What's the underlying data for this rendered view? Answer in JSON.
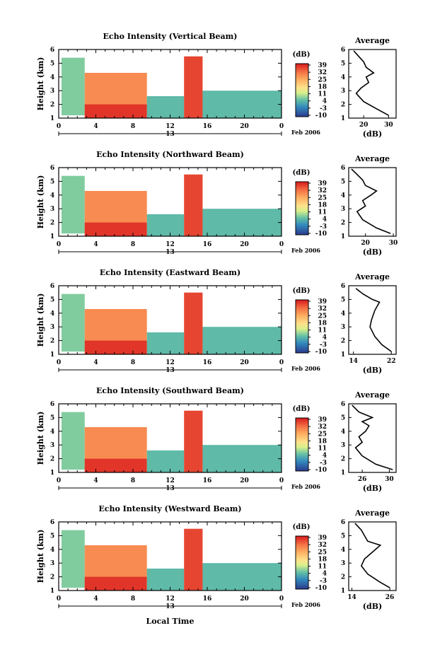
{
  "chart_data": [
    {
      "type": "heatmap",
      "title": "Echo Intensity (Vertical Beam)",
      "ylabel": "Height (km)",
      "xticks": [
        "0",
        "4",
        "8",
        "12",
        "16",
        "20",
        "0"
      ],
      "yticks": [
        "1",
        "2",
        "3",
        "4",
        "5",
        "6"
      ],
      "ylim": [
        1,
        6
      ],
      "xlim": [
        0,
        24
      ],
      "date_label": "Feb 2006",
      "day_label": "13",
      "colorbar_unit": "(dB)",
      "colorbar_ticks": [
        "39",
        "32",
        "25",
        "18",
        "11",
        "4",
        "-3",
        "-10"
      ],
      "cells": [
        {
          "x0": 0.3,
          "x1": 2.8,
          "y0": 1.2,
          "y1": 5.4,
          "level": 0.35
        },
        {
          "x0": 2.8,
          "x1": 9.5,
          "y0": 1.0,
          "y1": 4.3,
          "level": 0.78
        },
        {
          "x0": 2.8,
          "x1": 9.5,
          "y0": 1.0,
          "y1": 2.0,
          "level": 0.95
        },
        {
          "x0": 9.5,
          "x1": 13.5,
          "y0": 1.0,
          "y1": 2.6,
          "level": 0.3
        },
        {
          "x0": 13.5,
          "x1": 15.5,
          "y0": 1.0,
          "y1": 5.5,
          "level": 0.92
        },
        {
          "x0": 15.5,
          "x1": 24,
          "y0": 1.0,
          "y1": 3.0,
          "level": 0.3
        }
      ],
      "avg": {
        "title": "Average",
        "xlabel": "(dB)",
        "xticks": [
          "20",
          "30"
        ],
        "xlim": [
          14,
          33
        ],
        "profile": [
          [
            30,
            1.2
          ],
          [
            26,
            1.6
          ],
          [
            20,
            2.2
          ],
          [
            17,
            2.8
          ],
          [
            19,
            3.2
          ],
          [
            22,
            3.6
          ],
          [
            21,
            4.0
          ],
          [
            24,
            4.3
          ],
          [
            21,
            4.7
          ],
          [
            20,
            5.1
          ],
          [
            18,
            5.5
          ],
          [
            16,
            5.9
          ]
        ]
      }
    },
    {
      "type": "heatmap",
      "title": "Echo Intensity (Northward Beam)",
      "ylabel": "Height (km)",
      "xticks": [
        "0",
        "4",
        "8",
        "12",
        "16",
        "20",
        "0"
      ],
      "yticks": [
        "1",
        "2",
        "3",
        "4",
        "5",
        "6"
      ],
      "ylim": [
        1,
        6
      ],
      "xlim": [
        0,
        24
      ],
      "date_label": "Feb 2006",
      "day_label": "13",
      "colorbar_unit": "(dB)",
      "colorbar_ticks": [
        "39",
        "32",
        "25",
        "18",
        "11",
        "4",
        "-3",
        "-10"
      ],
      "cells": [
        {
          "x0": 0.3,
          "x1": 2.8,
          "y0": 1.2,
          "y1": 5.4,
          "level": 0.35
        },
        {
          "x0": 2.8,
          "x1": 9.5,
          "y0": 1.0,
          "y1": 4.3,
          "level": 0.78
        },
        {
          "x0": 2.8,
          "x1": 9.5,
          "y0": 1.0,
          "y1": 2.0,
          "level": 0.95
        },
        {
          "x0": 9.5,
          "x1": 13.5,
          "y0": 1.0,
          "y1": 2.6,
          "level": 0.3
        },
        {
          "x0": 13.5,
          "x1": 15.5,
          "y0": 1.0,
          "y1": 5.5,
          "level": 0.92
        },
        {
          "x0": 15.5,
          "x1": 24,
          "y0": 1.0,
          "y1": 3.0,
          "level": 0.3
        }
      ],
      "avg": {
        "title": "Average",
        "xlabel": "(dB)",
        "xticks": [
          "20",
          "30"
        ],
        "xlim": [
          14,
          31
        ],
        "profile": [
          [
            29,
            1.2
          ],
          [
            24,
            1.6
          ],
          [
            19,
            2.2
          ],
          [
            17,
            2.8
          ],
          [
            20,
            3.2
          ],
          [
            19,
            3.6
          ],
          [
            22,
            4.0
          ],
          [
            24,
            4.3
          ],
          [
            20,
            4.7
          ],
          [
            19,
            5.1
          ],
          [
            17,
            5.5
          ],
          [
            15,
            5.9
          ]
        ]
      }
    },
    {
      "type": "heatmap",
      "title": "Echo Intensity (Eastward Beam)",
      "ylabel": "Height (km)",
      "xticks": [
        "0",
        "4",
        "8",
        "12",
        "16",
        "20",
        "0"
      ],
      "yticks": [
        "1",
        "2",
        "3",
        "4",
        "5",
        "6"
      ],
      "ylim": [
        1,
        6
      ],
      "xlim": [
        0,
        24
      ],
      "date_label": "Feb 2006",
      "day_label": "13",
      "colorbar_unit": "(dB)",
      "colorbar_ticks": [
        "39",
        "32",
        "25",
        "18",
        "11",
        "4",
        "-3",
        "-10"
      ],
      "cells": [
        {
          "x0": 0.3,
          "x1": 2.8,
          "y0": 1.2,
          "y1": 5.4,
          "level": 0.35
        },
        {
          "x0": 2.8,
          "x1": 9.5,
          "y0": 1.0,
          "y1": 4.3,
          "level": 0.78
        },
        {
          "x0": 2.8,
          "x1": 9.5,
          "y0": 1.0,
          "y1": 2.0,
          "level": 0.95
        },
        {
          "x0": 9.5,
          "x1": 13.5,
          "y0": 1.0,
          "y1": 2.6,
          "level": 0.3
        },
        {
          "x0": 13.5,
          "x1": 15.5,
          "y0": 1.0,
          "y1": 5.5,
          "level": 0.92
        },
        {
          "x0": 15.5,
          "x1": 24,
          "y0": 1.0,
          "y1": 3.0,
          "level": 0.3
        }
      ],
      "avg": {
        "title": "Average",
        "xlabel": "(dB)",
        "xticks": [
          "14",
          "22"
        ],
        "xlim": [
          13,
          23
        ],
        "profile": [
          [
            22,
            1.2
          ],
          [
            20,
            1.7
          ],
          [
            18.5,
            2.3
          ],
          [
            17.5,
            3.0
          ],
          [
            17.8,
            3.5
          ],
          [
            18.5,
            4.2
          ],
          [
            19.5,
            4.8
          ],
          [
            18,
            5.0
          ],
          [
            16,
            5.4
          ],
          [
            14.5,
            5.8
          ]
        ]
      }
    },
    {
      "type": "heatmap",
      "title": "Echo Intensity (Southward Beam)",
      "ylabel": "Height (km)",
      "xticks": [
        "0",
        "4",
        "8",
        "12",
        "16",
        "20",
        "0"
      ],
      "yticks": [
        "1",
        "2",
        "3",
        "4",
        "5",
        "6"
      ],
      "ylim": [
        1,
        6
      ],
      "xlim": [
        0,
        24
      ],
      "date_label": "Feb 2006",
      "day_label": "13",
      "colorbar_unit": "(dB)",
      "colorbar_ticks": [
        "39",
        "32",
        "25",
        "18",
        "11",
        "4",
        "-3",
        "-10"
      ],
      "cells": [
        {
          "x0": 0.3,
          "x1": 2.8,
          "y0": 1.2,
          "y1": 5.4,
          "level": 0.35
        },
        {
          "x0": 2.8,
          "x1": 9.5,
          "y0": 1.0,
          "y1": 4.3,
          "level": 0.78
        },
        {
          "x0": 2.8,
          "x1": 9.5,
          "y0": 1.0,
          "y1": 2.0,
          "level": 0.95
        },
        {
          "x0": 9.5,
          "x1": 13.5,
          "y0": 1.0,
          "y1": 2.6,
          "level": 0.3
        },
        {
          "x0": 13.5,
          "x1": 15.5,
          "y0": 1.0,
          "y1": 5.5,
          "level": 0.92
        },
        {
          "x0": 15.5,
          "x1": 24,
          "y0": 1.0,
          "y1": 3.0,
          "level": 0.3
        }
      ],
      "avg": {
        "title": "Average",
        "xlabel": "(dB)",
        "xticks": [
          "26",
          "30"
        ],
        "xlim": [
          24,
          31
        ],
        "profile": [
          [
            30.5,
            1.2
          ],
          [
            28,
            1.6
          ],
          [
            26,
            2.2
          ],
          [
            25,
            2.8
          ],
          [
            26,
            3.2
          ],
          [
            25.5,
            3.6
          ],
          [
            26.5,
            4.0
          ],
          [
            27,
            4.4
          ],
          [
            26,
            4.7
          ],
          [
            27.5,
            5.0
          ],
          [
            25.5,
            5.4
          ],
          [
            24.5,
            5.9
          ]
        ]
      }
    },
    {
      "type": "heatmap",
      "title": "Echo Intensity (Westward Beam)",
      "ylabel": "Height (km)",
      "xlabel": "Local Time",
      "xticks": [
        "0",
        "4",
        "8",
        "12",
        "16",
        "20",
        "0"
      ],
      "yticks": [
        "1",
        "2",
        "3",
        "4",
        "5",
        "6"
      ],
      "ylim": [
        1,
        6
      ],
      "xlim": [
        0,
        24
      ],
      "date_label": "Feb 2006",
      "day_label": "13",
      "colorbar_unit": "(dB)",
      "colorbar_ticks": [
        "39",
        "32",
        "25",
        "18",
        "11",
        "4",
        "-3",
        "-10"
      ],
      "cells": [
        {
          "x0": 0.3,
          "x1": 2.8,
          "y0": 1.2,
          "y1": 5.4,
          "level": 0.35
        },
        {
          "x0": 2.8,
          "x1": 9.5,
          "y0": 1.0,
          "y1": 4.3,
          "level": 0.78
        },
        {
          "x0": 2.8,
          "x1": 9.5,
          "y0": 1.0,
          "y1": 2.0,
          "level": 0.95
        },
        {
          "x0": 9.5,
          "x1": 13.5,
          "y0": 1.0,
          "y1": 2.6,
          "level": 0.3
        },
        {
          "x0": 13.5,
          "x1": 15.5,
          "y0": 1.0,
          "y1": 5.5,
          "level": 0.92
        },
        {
          "x0": 15.5,
          "x1": 24,
          "y0": 1.0,
          "y1": 3.0,
          "level": 0.3
        }
      ],
      "avg": {
        "title": "Average",
        "xlabel": "(dB)",
        "xticks": [
          "14",
          "26"
        ],
        "xlim": [
          13,
          28
        ],
        "profile": [
          [
            26,
            1.2
          ],
          [
            23,
            1.6
          ],
          [
            19,
            2.2
          ],
          [
            17,
            2.8
          ],
          [
            18,
            3.3
          ],
          [
            20,
            3.7
          ],
          [
            23,
            4.3
          ],
          [
            19,
            4.6
          ],
          [
            18,
            5.0
          ],
          [
            17,
            5.4
          ],
          [
            15,
            5.9
          ]
        ]
      }
    }
  ]
}
